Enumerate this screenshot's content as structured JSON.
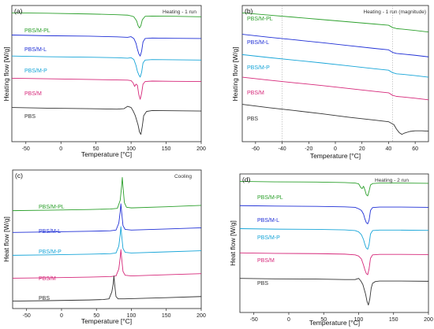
{
  "chart_data": [
    {
      "type": "line",
      "panel": "(a)",
      "note": "Heating - 1 run",
      "xlabel": "Temperature [°C]",
      "ylabel": "Heating flow [W/g]",
      "xlim": [
        -70,
        200
      ],
      "xticks": [
        -50,
        0,
        50,
        100,
        150,
        200
      ],
      "grid": false,
      "series": [
        {
          "name": "PBS/M-PL",
          "color": "#2ca02c",
          "x": [
            -70,
            -20,
            40,
            80,
            95,
            100,
            104,
            108,
            110,
            112,
            114,
            116,
            120,
            130,
            160,
            200
          ],
          "y": [
            5.6,
            5.58,
            5.55,
            5.52,
            5.5,
            5.47,
            5.43,
            5.25,
            5.05,
            4.95,
            5.05,
            5.3,
            5.45,
            5.46,
            5.45,
            5.43
          ]
        },
        {
          "name": "PBS/M-L",
          "color": "#1f2fd6",
          "x": [
            -70,
            -20,
            40,
            80,
            95,
            100,
            104,
            107,
            109,
            111,
            113,
            115,
            117,
            120,
            130,
            160,
            200
          ],
          "y": [
            4.65,
            4.62,
            4.6,
            4.57,
            4.55,
            4.58,
            4.5,
            4.3,
            4.05,
            3.85,
            3.75,
            3.95,
            4.35,
            4.5,
            4.52,
            4.51,
            4.5
          ]
        },
        {
          "name": "PBS/M-P",
          "color": "#17a5d8",
          "x": [
            -70,
            -20,
            40,
            80,
            95,
            100,
            104,
            107,
            109,
            111,
            113,
            115,
            117,
            120,
            130,
            160,
            200
          ],
          "y": [
            3.75,
            3.72,
            3.7,
            3.68,
            3.66,
            3.68,
            3.6,
            3.35,
            3.1,
            2.95,
            2.85,
            3.05,
            3.45,
            3.58,
            3.6,
            3.59,
            3.58
          ]
        },
        {
          "name": "PBS/M",
          "color": "#d6287a",
          "x": [
            -70,
            -20,
            40,
            80,
            95,
            100,
            103,
            105,
            107,
            109,
            111,
            113,
            115,
            117,
            120,
            130,
            160,
            200
          ],
          "y": [
            2.8,
            2.78,
            2.75,
            2.73,
            2.72,
            2.7,
            2.6,
            2.45,
            2.55,
            2.5,
            2.1,
            1.9,
            2.15,
            2.55,
            2.66,
            2.68,
            2.67,
            2.66
          ]
        },
        {
          "name": "PBS",
          "color": "#333333",
          "x": [
            -70,
            -20,
            40,
            80,
            90,
            95,
            100,
            103,
            106,
            108,
            110,
            112,
            114,
            116,
            118,
            122,
            130,
            160,
            200
          ],
          "y": [
            1.55,
            1.52,
            1.5,
            1.48,
            1.5,
            1.6,
            1.55,
            1.4,
            1.2,
            1.0,
            0.8,
            0.5,
            0.4,
            0.75,
            1.2,
            1.38,
            1.42,
            1.41,
            1.4
          ]
        }
      ]
    },
    {
      "type": "line",
      "panel": "(b)",
      "note": "Heating - 1 run (magnitude)",
      "xlabel": "Temperature [°C]",
      "ylabel": "Heating flow [W/g]",
      "xlim": [
        -70,
        70
      ],
      "xticks": [
        -60,
        -40,
        -20,
        0,
        20,
        40,
        60
      ],
      "reference_lines_x": [
        -40,
        43
      ],
      "grid": false,
      "series": [
        {
          "name": "PBS/M-PL",
          "color": "#2ca02c",
          "x": [
            -70,
            -50,
            -30,
            -10,
            10,
            30,
            40,
            43,
            46,
            50,
            60,
            70
          ],
          "y": [
            5.6,
            5.5,
            5.4,
            5.3,
            5.2,
            5.1,
            5.05,
            4.95,
            4.9,
            4.88,
            4.82,
            4.75
          ]
        },
        {
          "name": "PBS/M-L",
          "color": "#1f2fd6",
          "x": [
            -70,
            -50,
            -30,
            -10,
            10,
            30,
            40,
            43,
            46,
            50,
            60,
            70
          ],
          "y": [
            4.65,
            4.52,
            4.4,
            4.28,
            4.15,
            4.02,
            3.96,
            3.85,
            3.8,
            3.78,
            3.72,
            3.65
          ]
        },
        {
          "name": "PBS/M-P",
          "color": "#17a5d8",
          "x": [
            -70,
            -50,
            -30,
            -10,
            10,
            30,
            40,
            43,
            46,
            50,
            60,
            70
          ],
          "y": [
            3.75,
            3.62,
            3.5,
            3.38,
            3.25,
            3.12,
            3.06,
            2.95,
            2.9,
            2.88,
            2.82,
            2.75
          ]
        },
        {
          "name": "PBS/M",
          "color": "#d6287a",
          "x": [
            -70,
            -50,
            -30,
            -10,
            10,
            30,
            40,
            43,
            46,
            50,
            60,
            70
          ],
          "y": [
            2.75,
            2.62,
            2.5,
            2.38,
            2.25,
            2.12,
            2.06,
            1.95,
            1.9,
            1.88,
            1.82,
            1.75
          ]
        },
        {
          "name": "PBS",
          "color": "#333333",
          "x": [
            -70,
            -50,
            -30,
            -10,
            10,
            30,
            40,
            44,
            46,
            48,
            50,
            52,
            56,
            60,
            65,
            70
          ],
          "y": [
            1.55,
            1.4,
            1.27,
            1.13,
            0.98,
            0.85,
            0.78,
            0.65,
            0.45,
            0.3,
            0.22,
            0.28,
            0.35,
            0.38,
            0.38,
            0.36
          ]
        }
      ]
    },
    {
      "type": "line",
      "panel": "(c)",
      "note": "Cooling",
      "xlabel": "Temperature [°C]",
      "ylabel": "Heat flow [W/g]",
      "xlim": [
        -70,
        200
      ],
      "xticks": [
        -50,
        0,
        50,
        100,
        150,
        200
      ],
      "grid": false,
      "series": [
        {
          "name": "PBS/M-PL",
          "color": "#2ca02c",
          "x": [
            -70,
            -20,
            40,
            70,
            80,
            84,
            86,
            87,
            88,
            90,
            93,
            100,
            150,
            200
          ],
          "y": [
            5.15,
            5.17,
            5.2,
            5.22,
            5.25,
            5.6,
            6.2,
            6.6,
            6.2,
            5.5,
            5.3,
            5.27,
            5.32,
            5.38
          ]
        },
        {
          "name": "PBS/M-L",
          "color": "#1f2fd6",
          "x": [
            -70,
            -20,
            40,
            70,
            78,
            82,
            84,
            85,
            86,
            88,
            91,
            100,
            150,
            200
          ],
          "y": [
            4.2,
            4.22,
            4.25,
            4.27,
            4.3,
            4.6,
            5.1,
            5.45,
            5.1,
            4.5,
            4.33,
            4.3,
            4.35,
            4.4
          ]
        },
        {
          "name": "PBS/M-P",
          "color": "#17a5d8",
          "x": [
            -70,
            -20,
            40,
            70,
            78,
            82,
            84,
            85,
            86,
            88,
            91,
            100,
            150,
            200
          ],
          "y": [
            3.2,
            3.22,
            3.25,
            3.27,
            3.3,
            3.6,
            4.1,
            4.45,
            4.1,
            3.5,
            3.33,
            3.3,
            3.35,
            3.4
          ]
        },
        {
          "name": "PBS/M",
          "color": "#d6287a",
          "x": [
            -70,
            -20,
            40,
            70,
            78,
            82,
            84,
            85,
            86,
            88,
            91,
            100,
            150,
            200
          ],
          "y": [
            2.2,
            2.22,
            2.25,
            2.27,
            2.3,
            2.6,
            3.1,
            3.45,
            3.1,
            2.5,
            2.33,
            2.3,
            2.35,
            2.4
          ]
        },
        {
          "name": "PBS",
          "color": "#333333",
          "x": [
            -70,
            -20,
            40,
            60,
            68,
            72,
            74,
            75,
            76,
            78,
            81,
            90,
            150,
            200
          ],
          "y": [
            1.2,
            1.22,
            1.25,
            1.27,
            1.3,
            1.6,
            1.95,
            2.3,
            1.95,
            1.4,
            1.3,
            1.3,
            1.35,
            1.4
          ]
        }
      ]
    },
    {
      "type": "line",
      "panel": "(d)",
      "note": "Heating - 2 run",
      "xlabel": "Temperature [°C]",
      "ylabel": "Heat flow [W/g]",
      "xlim": [
        -70,
        200
      ],
      "xticks": [
        -50,
        0,
        50,
        100,
        150,
        200
      ],
      "grid": false,
      "series": [
        {
          "name": "PBS/M-PL",
          "color": "#2ca02c",
          "x": [
            -70,
            -20,
            40,
            80,
            95,
            100,
            103,
            105,
            107,
            109,
            111,
            113,
            115,
            117,
            120,
            130,
            160,
            200
          ],
          "y": [
            5.55,
            5.53,
            5.52,
            5.5,
            5.48,
            5.45,
            5.3,
            5.25,
            5.35,
            5.2,
            5.0,
            4.95,
            5.15,
            5.4,
            5.46,
            5.48,
            5.48,
            5.47
          ]
        },
        {
          "name": "PBS/M-L",
          "color": "#1f2fd6",
          "x": [
            -70,
            -20,
            40,
            80,
            95,
            100,
            104,
            107,
            109,
            111,
            113,
            115,
            117,
            120,
            130,
            160,
            200
          ],
          "y": [
            4.55,
            4.53,
            4.52,
            4.5,
            4.48,
            4.42,
            4.35,
            4.2,
            4.0,
            3.85,
            3.8,
            3.95,
            4.35,
            4.47,
            4.49,
            4.49,
            4.48
          ]
        },
        {
          "name": "PBS/M-P",
          "color": "#17a5d8",
          "x": [
            -70,
            -20,
            40,
            80,
            95,
            100,
            104,
            107,
            109,
            111,
            113,
            115,
            117,
            120,
            130,
            160,
            200
          ],
          "y": [
            3.6,
            3.58,
            3.57,
            3.55,
            3.52,
            3.47,
            3.35,
            3.15,
            2.95,
            2.8,
            2.75,
            2.95,
            3.38,
            3.52,
            3.54,
            3.54,
            3.53
          ]
        },
        {
          "name": "PBS/M",
          "color": "#d6287a",
          "x": [
            -70,
            -20,
            40,
            80,
            95,
            100,
            104,
            107,
            109,
            111,
            113,
            115,
            117,
            120,
            130,
            160,
            200
          ],
          "y": [
            2.6,
            2.58,
            2.57,
            2.55,
            2.52,
            2.47,
            2.35,
            2.1,
            1.9,
            1.75,
            1.7,
            1.95,
            2.38,
            2.52,
            2.54,
            2.54,
            2.53
          ]
        },
        {
          "name": "PBS",
          "color": "#333333",
          "x": [
            -70,
            -20,
            40,
            80,
            95,
            100,
            103,
            106,
            108,
            110,
            112,
            114,
            116,
            118,
            120,
            124,
            130,
            160,
            200
          ],
          "y": [
            1.55,
            1.53,
            1.52,
            1.5,
            1.5,
            1.55,
            1.45,
            1.3,
            1.1,
            0.9,
            0.6,
            0.45,
            0.7,
            1.15,
            1.35,
            1.42,
            1.44,
            1.44,
            1.43
          ]
        }
      ]
    }
  ]
}
